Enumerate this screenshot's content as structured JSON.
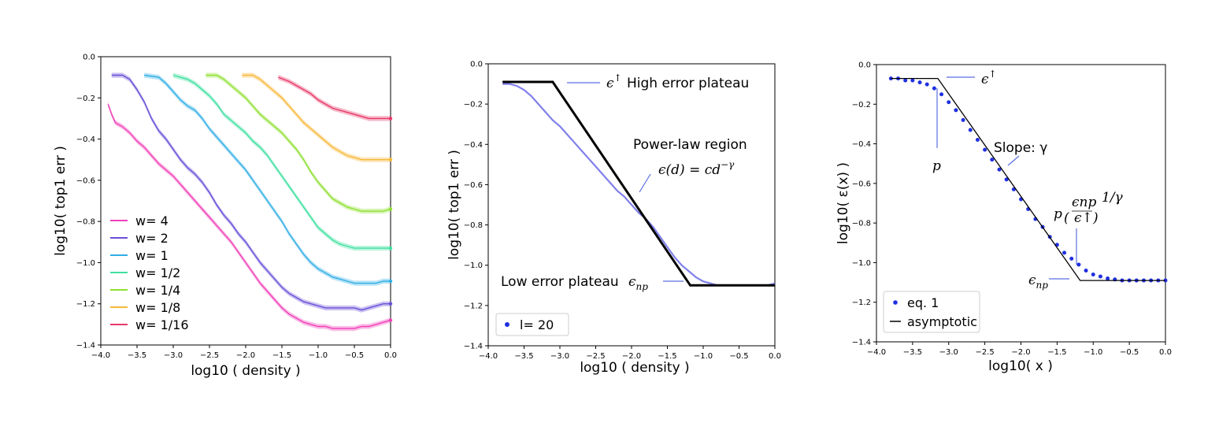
{
  "chart_data": [
    {
      "type": "line",
      "xlabel": "log10 ( density )",
      "ylabel": "log10( top1 err )",
      "xlim": [
        -4.0,
        0.0
      ],
      "ylim": [
        -1.4,
        0.0
      ],
      "x_ticks": [
        "−4.0",
        "−3.5",
        "−3.0",
        "−2.5",
        "−2.0",
        "−1.5",
        "−1.0",
        "−0.5",
        "0.0"
      ],
      "y_ticks": [
        "0.0",
        "−0.2",
        "−0.4",
        "−0.6",
        "−0.8",
        "−1.0",
        "−1.2",
        "−1.4"
      ],
      "legend_position": "bottom-left",
      "series": [
        {
          "name": "w= 4",
          "color": "#f040b8",
          "x": [
            -3.9,
            -3.85,
            -3.8,
            -3.7,
            -3.6,
            -3.5,
            -3.4,
            -3.3,
            -3.2,
            -3.1,
            -3.0,
            -2.9,
            -2.8,
            -2.7,
            -2.6,
            -2.5,
            -2.4,
            -2.3,
            -2.2,
            -2.1,
            -2.0,
            -1.9,
            -1.8,
            -1.7,
            -1.6,
            -1.5,
            -1.4,
            -1.3,
            -1.2,
            -1.1,
            -1.0,
            -0.9,
            -0.8,
            -0.7,
            -0.6,
            -0.5,
            -0.4,
            -0.3,
            -0.2,
            -0.1,
            0.0
          ],
          "y": [
            -0.23,
            -0.28,
            -0.32,
            -0.34,
            -0.37,
            -0.41,
            -0.44,
            -0.48,
            -0.52,
            -0.55,
            -0.58,
            -0.62,
            -0.66,
            -0.7,
            -0.74,
            -0.78,
            -0.82,
            -0.86,
            -0.9,
            -0.95,
            -1.0,
            -1.05,
            -1.1,
            -1.14,
            -1.18,
            -1.22,
            -1.25,
            -1.27,
            -1.29,
            -1.3,
            -1.31,
            -1.31,
            -1.32,
            -1.32,
            -1.32,
            -1.32,
            -1.31,
            -1.31,
            -1.3,
            -1.29,
            -1.28
          ]
        },
        {
          "name": "w= 2",
          "color": "#6a4fd8",
          "x": [
            -3.85,
            -3.7,
            -3.6,
            -3.5,
            -3.4,
            -3.3,
            -3.2,
            -3.1,
            -3.0,
            -2.9,
            -2.8,
            -2.7,
            -2.6,
            -2.5,
            -2.4,
            -2.3,
            -2.2,
            -2.1,
            -2.0,
            -1.9,
            -1.8,
            -1.7,
            -1.6,
            -1.5,
            -1.4,
            -1.3,
            -1.2,
            -1.1,
            -1.0,
            -0.9,
            -0.8,
            -0.7,
            -0.6,
            -0.5,
            -0.4,
            -0.3,
            -0.2,
            -0.1,
            0.0
          ],
          "y": [
            -0.09,
            -0.09,
            -0.11,
            -0.16,
            -0.22,
            -0.3,
            -0.36,
            -0.4,
            -0.45,
            -0.5,
            -0.54,
            -0.57,
            -0.61,
            -0.66,
            -0.72,
            -0.77,
            -0.81,
            -0.86,
            -0.9,
            -0.95,
            -1.0,
            -1.04,
            -1.08,
            -1.12,
            -1.15,
            -1.17,
            -1.19,
            -1.2,
            -1.21,
            -1.22,
            -1.22,
            -1.22,
            -1.22,
            -1.22,
            -1.23,
            -1.22,
            -1.21,
            -1.2,
            -1.2
          ]
        },
        {
          "name": "w= 1",
          "color": "#30aee6",
          "x": [
            -3.4,
            -3.2,
            -3.1,
            -3.0,
            -2.9,
            -2.8,
            -2.7,
            -2.6,
            -2.5,
            -2.4,
            -2.3,
            -2.2,
            -2.1,
            -2.0,
            -1.9,
            -1.8,
            -1.7,
            -1.6,
            -1.5,
            -1.4,
            -1.3,
            -1.2,
            -1.1,
            -1.0,
            -0.9,
            -0.8,
            -0.7,
            -0.6,
            -0.5,
            -0.4,
            -0.3,
            -0.2,
            -0.1,
            0.0
          ],
          "y": [
            -0.09,
            -0.1,
            -0.13,
            -0.17,
            -0.21,
            -0.24,
            -0.26,
            -0.3,
            -0.35,
            -0.39,
            -0.43,
            -0.47,
            -0.51,
            -0.55,
            -0.6,
            -0.65,
            -0.7,
            -0.75,
            -0.8,
            -0.86,
            -0.91,
            -0.96,
            -1.0,
            -1.03,
            -1.05,
            -1.07,
            -1.08,
            -1.09,
            -1.1,
            -1.1,
            -1.1,
            -1.1,
            -1.09,
            -1.09
          ]
        },
        {
          "name": "w= 1/2",
          "color": "#3ee0a0",
          "x": [
            -3.0,
            -2.9,
            -2.8,
            -2.7,
            -2.6,
            -2.5,
            -2.4,
            -2.3,
            -2.2,
            -2.1,
            -2.0,
            -1.9,
            -1.8,
            -1.7,
            -1.6,
            -1.5,
            -1.4,
            -1.3,
            -1.2,
            -1.1,
            -1.0,
            -0.9,
            -0.8,
            -0.7,
            -0.6,
            -0.5,
            -0.4,
            -0.3,
            -0.2,
            -0.1,
            0.0
          ],
          "y": [
            -0.09,
            -0.1,
            -0.11,
            -0.13,
            -0.16,
            -0.19,
            -0.23,
            -0.28,
            -0.31,
            -0.34,
            -0.37,
            -0.41,
            -0.44,
            -0.48,
            -0.53,
            -0.58,
            -0.63,
            -0.68,
            -0.73,
            -0.78,
            -0.83,
            -0.86,
            -0.89,
            -0.91,
            -0.92,
            -0.93,
            -0.93,
            -0.93,
            -0.93,
            -0.93,
            -0.93
          ]
        },
        {
          "name": "w= 1/4",
          "color": "#8ee030",
          "x": [
            -2.55,
            -2.4,
            -2.3,
            -2.2,
            -2.1,
            -2.0,
            -1.9,
            -1.8,
            -1.7,
            -1.6,
            -1.5,
            -1.4,
            -1.3,
            -1.2,
            -1.1,
            -1.0,
            -0.9,
            -0.8,
            -0.7,
            -0.6,
            -0.5,
            -0.4,
            -0.3,
            -0.2,
            -0.1,
            0.0
          ],
          "y": [
            -0.09,
            -0.09,
            -0.11,
            -0.14,
            -0.17,
            -0.2,
            -0.24,
            -0.28,
            -0.31,
            -0.34,
            -0.37,
            -0.41,
            -0.45,
            -0.5,
            -0.56,
            -0.61,
            -0.65,
            -0.69,
            -0.71,
            -0.73,
            -0.74,
            -0.75,
            -0.75,
            -0.75,
            -0.75,
            -0.74
          ]
        },
        {
          "name": "w= 1/8",
          "color": "#f8b838",
          "x": [
            -2.05,
            -1.9,
            -1.8,
            -1.7,
            -1.6,
            -1.5,
            -1.4,
            -1.3,
            -1.2,
            -1.1,
            -1.0,
            -0.9,
            -0.8,
            -0.7,
            -0.6,
            -0.5,
            -0.4,
            -0.3,
            -0.2,
            -0.1,
            0.0
          ],
          "y": [
            -0.09,
            -0.09,
            -0.11,
            -0.14,
            -0.17,
            -0.2,
            -0.24,
            -0.28,
            -0.32,
            -0.35,
            -0.38,
            -0.41,
            -0.44,
            -0.46,
            -0.48,
            -0.49,
            -0.5,
            -0.5,
            -0.5,
            -0.5,
            -0.5
          ]
        },
        {
          "name": "w= 1/16",
          "color": "#e83868",
          "x": [
            -1.55,
            -1.4,
            -1.3,
            -1.2,
            -1.1,
            -1.0,
            -0.9,
            -0.8,
            -0.7,
            -0.6,
            -0.5,
            -0.4,
            -0.3,
            -0.2,
            -0.1,
            0.0
          ],
          "y": [
            -0.1,
            -0.12,
            -0.14,
            -0.16,
            -0.18,
            -0.21,
            -0.23,
            -0.25,
            -0.26,
            -0.27,
            -0.28,
            -0.29,
            -0.3,
            -0.3,
            -0.3,
            -0.3
          ]
        }
      ]
    },
    {
      "type": "line",
      "xlabel": "log10 ( density )",
      "ylabel": "log10( top1 err )",
      "xlim": [
        -4.0,
        0.0
      ],
      "ylim": [
        -1.4,
        0.0
      ],
      "x_ticks": [
        "−4.0",
        "−3.5",
        "−3.0",
        "−2.5",
        "−2.0",
        "−1.5",
        "−1.0",
        "−0.5",
        "0.0"
      ],
      "y_ticks": [
        "0.0",
        "−0.2",
        "−0.4",
        "−0.6",
        "−0.8",
        "−1.0",
        "−1.2",
        "−1.4"
      ],
      "legend_position": "bottom-left",
      "legend": [
        "l= 20"
      ],
      "series": [
        {
          "name": "l= 20",
          "color": "#6a6ae8",
          "x": [
            -3.8,
            -3.7,
            -3.6,
            -3.5,
            -3.4,
            -3.3,
            -3.2,
            -3.1,
            -3.0,
            -2.9,
            -2.8,
            -2.7,
            -2.6,
            -2.5,
            -2.4,
            -2.3,
            -2.2,
            -2.1,
            -2.0,
            -1.9,
            -1.8,
            -1.7,
            -1.6,
            -1.5,
            -1.4,
            -1.3,
            -1.2,
            -1.1,
            -1.0,
            -0.9,
            -0.8,
            -0.7,
            -0.6,
            -0.5,
            -0.4,
            -0.3,
            -0.2,
            -0.1,
            0.0
          ],
          "y": [
            -0.1,
            -0.1,
            -0.11,
            -0.13,
            -0.16,
            -0.2,
            -0.24,
            -0.28,
            -0.31,
            -0.35,
            -0.39,
            -0.43,
            -0.47,
            -0.51,
            -0.55,
            -0.59,
            -0.63,
            -0.66,
            -0.7,
            -0.74,
            -0.77,
            -0.81,
            -0.86,
            -0.91,
            -0.96,
            -1.0,
            -1.03,
            -1.06,
            -1.08,
            -1.09,
            -1.1,
            -1.1,
            -1.1,
            -1.1,
            -1.1,
            -1.1,
            -1.1,
            -1.1,
            -1.09
          ]
        },
        {
          "name": "asymptotic",
          "color": "#000000",
          "x": [
            -3.8,
            -3.1,
            -1.18,
            0.0
          ],
          "y": [
            -0.09,
            -0.09,
            -1.1,
            -1.1
          ]
        }
      ],
      "annotations": {
        "high_plateau_symbol": "ϵ",
        "high_plateau_sup": "↑",
        "high_plateau_text": "High error plateau",
        "power_law_title": "Power-law region",
        "power_law_eq": "ϵ(d) = cd",
        "power_law_exp": "−γ",
        "low_plateau_text": "Low error plateau",
        "low_plateau_symbol": "ϵ",
        "low_plateau_sub": "np"
      }
    },
    {
      "type": "line",
      "xlabel": "log10( x )",
      "ylabel": "log10( ε(x) )",
      "xlim": [
        -4.0,
        0.0
      ],
      "ylim": [
        -1.4,
        0.0
      ],
      "x_ticks": [
        "−4.0",
        "−3.5",
        "−3.0",
        "−2.5",
        "−2.0",
        "−1.5",
        "−1.0",
        "−0.5",
        "0.0"
      ],
      "y_ticks": [
        "0.0",
        "−0.2",
        "−0.4",
        "−0.6",
        "−0.8",
        "−1.0",
        "−1.2",
        "−1.4"
      ],
      "legend_position": "bottom-left",
      "legend": [
        "eq. 1",
        "asymptotic"
      ],
      "series": [
        {
          "name": "eq. 1",
          "color": "#2030e0",
          "x": [
            -3.8,
            -3.7,
            -3.6,
            -3.5,
            -3.4,
            -3.3,
            -3.2,
            -3.1,
            -3.0,
            -2.9,
            -2.8,
            -2.7,
            -2.6,
            -2.5,
            -2.4,
            -2.3,
            -2.2,
            -2.1,
            -2.0,
            -1.9,
            -1.8,
            -1.7,
            -1.6,
            -1.5,
            -1.4,
            -1.3,
            -1.2,
            -1.1,
            -1.0,
            -0.9,
            -0.8,
            -0.7,
            -0.6,
            -0.5,
            -0.4,
            -0.3,
            -0.2,
            -0.1,
            0.0
          ],
          "y": [
            -0.07,
            -0.07,
            -0.08,
            -0.08,
            -0.09,
            -0.1,
            -0.12,
            -0.15,
            -0.19,
            -0.23,
            -0.28,
            -0.33,
            -0.38,
            -0.43,
            -0.48,
            -0.53,
            -0.58,
            -0.63,
            -0.68,
            -0.73,
            -0.78,
            -0.82,
            -0.87,
            -0.91,
            -0.95,
            -0.98,
            -1.01,
            -1.04,
            -1.06,
            -1.07,
            -1.08,
            -1.085,
            -1.09,
            -1.09,
            -1.09,
            -1.09,
            -1.09,
            -1.09,
            -1.09
          ]
        },
        {
          "name": "asymptotic",
          "color": "#000000",
          "x": [
            -3.8,
            -3.15,
            -1.18,
            0.0
          ],
          "y": [
            -0.07,
            -0.07,
            -1.09,
            -1.09
          ]
        }
      ],
      "annotations": {
        "eps_up_symbol": "ϵ",
        "eps_up_sup": "↑",
        "slope_text": "Slope: γ",
        "p_label": "p",
        "p_formula_p": "p",
        "p_formula_num": "ϵnp",
        "p_formula_den": "ϵ↑",
        "p_formula_exp": "1/γ",
        "eps_np_symbol": "ϵ",
        "eps_np_sub": "np"
      }
    }
  ]
}
